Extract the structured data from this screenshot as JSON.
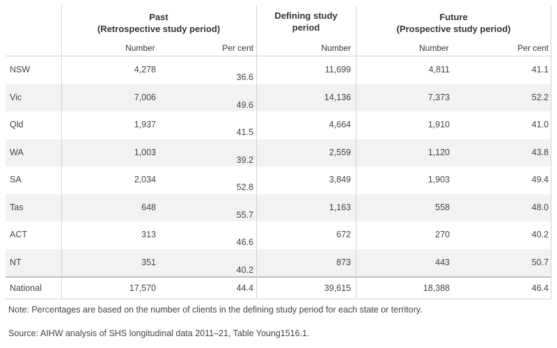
{
  "table": {
    "groups": {
      "past_line1": "Past",
      "past_line2": "(Retrospective study period)",
      "defining_line1": "Defining study",
      "defining_line2": "period",
      "future_line1": "Future",
      "future_line2": "(Prospective study period)"
    },
    "subheaders": {
      "past_number": "Number",
      "past_percent": "Per cent",
      "defining_number": "Number",
      "future_number": "Number",
      "future_percent": "Per cent"
    },
    "rows": [
      {
        "state": "NSW",
        "past_number": "4,278",
        "past_percent": "36.6",
        "defining_number": "11,699",
        "future_number": "4,811",
        "future_percent": "41.1"
      },
      {
        "state": "Vic",
        "past_number": "7,006",
        "past_percent": "49.6",
        "defining_number": "14,136",
        "future_number": "7,373",
        "future_percent": "52.2"
      },
      {
        "state": "Qld",
        "past_number": "1,937",
        "past_percent": "41.5",
        "defining_number": "4,664",
        "future_number": "1,910",
        "future_percent": "41.0"
      },
      {
        "state": "WA",
        "past_number": "1,003",
        "past_percent": "39.2",
        "defining_number": "2,559",
        "future_number": "1,120",
        "future_percent": "43.8"
      },
      {
        "state": "SA",
        "past_number": "2,034",
        "past_percent": "52.8",
        "defining_number": "3,849",
        "future_number": "1,903",
        "future_percent": "49.4"
      },
      {
        "state": "Tas",
        "past_number": "648",
        "past_percent": "55.7",
        "defining_number": "1,163",
        "future_number": "558",
        "future_percent": "48.0"
      },
      {
        "state": "ACT",
        "past_number": "313",
        "past_percent": "46.6",
        "defining_number": "672",
        "future_number": "270",
        "future_percent": "40.2"
      },
      {
        "state": "NT",
        "past_number": "351",
        "past_percent": "40.2",
        "defining_number": "873",
        "future_number": "443",
        "future_percent": "50.7"
      }
    ],
    "national": {
      "state": "National",
      "past_number": "17,570",
      "past_percent": "44.4",
      "defining_number": "39,615",
      "future_number": "18,388",
      "future_percent": "46.4"
    }
  },
  "footnotes": {
    "note": "Note: Percentages are based on the number of clients in the defining study period for each state or territory.",
    "source": "Source: AIHW analysis of SHS longitudinal data 2011–21, Table Young1516.1."
  }
}
